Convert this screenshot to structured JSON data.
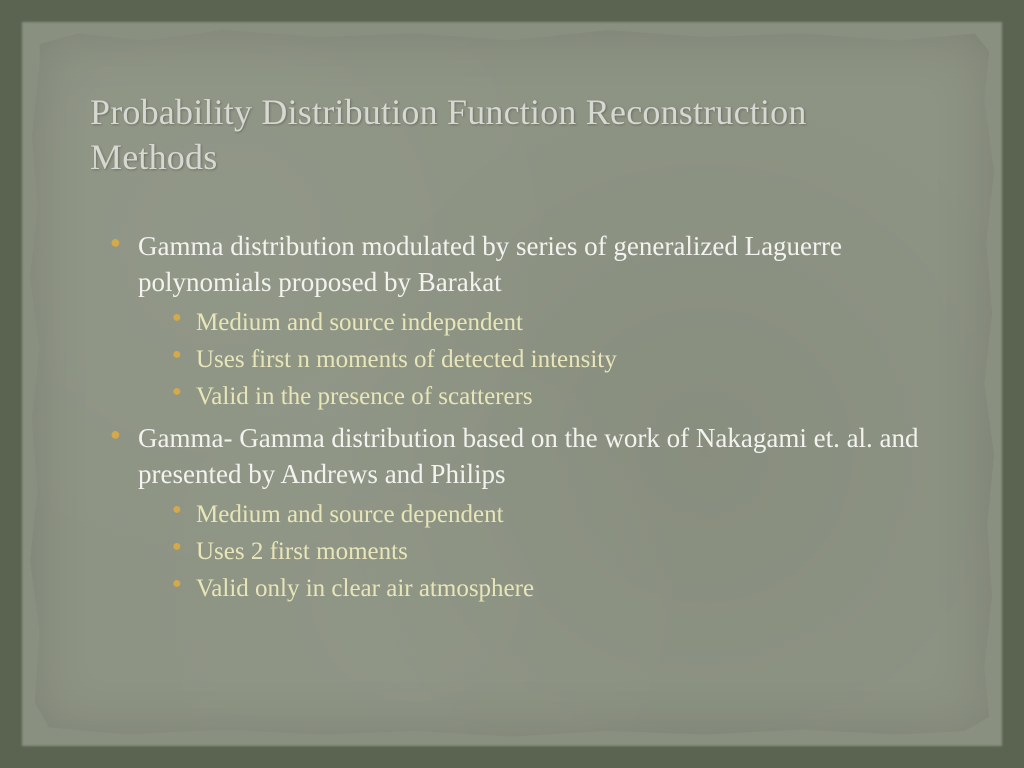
{
  "colors": {
    "background_outer": "#5a6450",
    "paper": "#8e9484",
    "title": "#d6d8d2",
    "body_text": "#f2f3ef",
    "sub_text": "#e8e6b8",
    "bullet_primary": "#d4a94a",
    "bullet_secondary": "#d4a94a"
  },
  "typography": {
    "title_fontsize": 36,
    "body_fontsize": 27,
    "sub_fontsize": 25,
    "font_family": "Georgia, serif"
  },
  "slide": {
    "title": "Probability Distribution Function Reconstruction Methods",
    "items": [
      {
        "text": "Gamma distribution modulated by series of generalized Laguerre polynomials  proposed by Barakat",
        "sub": [
          "Medium  and source independent",
          "Uses first n moments of detected intensity",
          "Valid in the presence of scatterers"
        ]
      },
      {
        "text": "Gamma- Gamma distribution based on the work of Nakagami et. al. and presented by Andrews and Philips",
        "sub": [
          "Medium and source dependent",
          "Uses 2 first moments",
          "Valid only in clear air atmosphere"
        ]
      }
    ]
  }
}
